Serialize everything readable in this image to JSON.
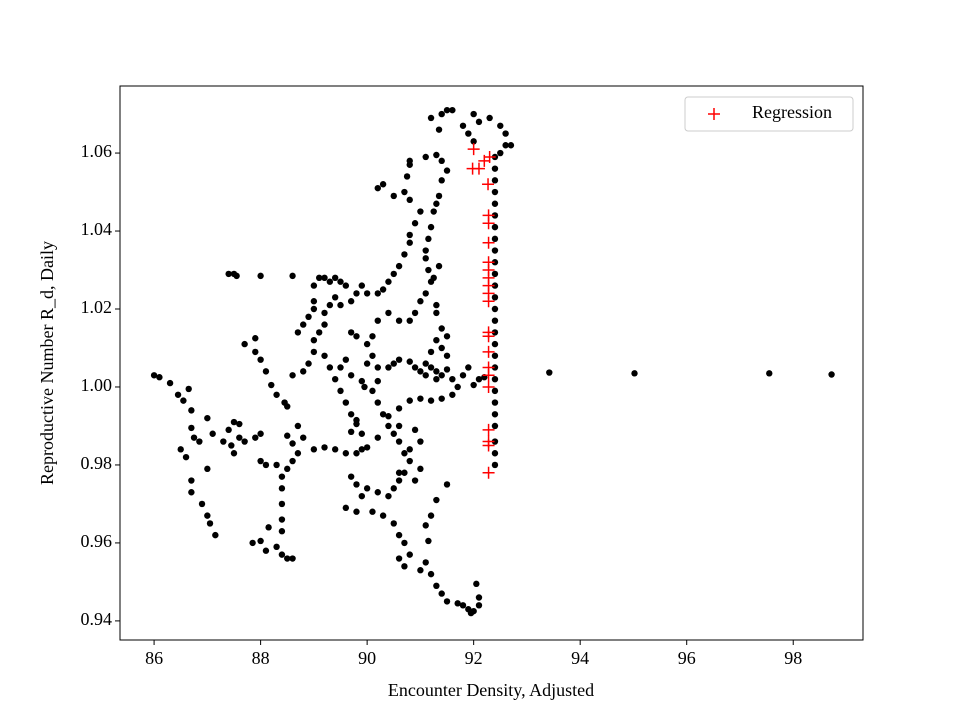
{
  "chart_data": {
    "type": "scatter",
    "xlabel": "Encounter Density, Adjusted",
    "ylabel": "Reproductive Number R_d, Daily",
    "xlim": [
      85.36,
      99.31
    ],
    "ylim": [
      0.9351,
      1.0772
    ],
    "xticks": [
      86,
      88,
      90,
      92,
      94,
      96,
      98
    ],
    "yticks": [
      0.94,
      0.96,
      0.98,
      {
        "value": 1.0,
        "label": "1.00"
      },
      1.02,
      1.04,
      1.06
    ],
    "legend": "upper right",
    "series": [
      {
        "color": "#000000",
        "marker": "circle",
        "x": [
          86.0,
          86.1,
          86.3,
          86.45,
          86.55,
          86.65,
          86.7,
          86.7,
          86.75,
          86.85,
          86.5,
          86.6,
          86.7,
          86.7,
          86.9,
          87.0,
          87.05,
          87.15,
          87.0,
          87.0,
          87.1,
          87.3,
          87.4,
          87.5,
          87.6,
          87.45,
          87.5,
          87.7,
          87.9,
          88.0,
          87.6,
          87.4,
          87.5,
          87.55,
          88.0,
          88.6,
          87.7,
          87.9,
          87.9,
          88.0,
          88.1,
          88.2,
          88.3,
          88.45,
          88.5,
          88.0,
          88.1,
          88.3,
          88.4,
          88.4,
          88.4,
          88.4,
          88.4,
          88.3,
          88.4,
          88.5,
          88.6,
          88.1,
          88.0,
          87.85,
          88.15,
          88.5,
          88.6,
          88.7,
          88.6,
          88.5,
          88.8,
          88.7,
          88.6,
          88.8,
          88.9,
          89.0,
          88.7,
          88.8,
          88.9,
          89.0,
          89.0,
          89.0,
          89.1,
          89.2,
          89.3,
          89.4,
          89.5,
          89.6,
          89.0,
          89.1,
          89.2,
          89.2,
          89.3,
          89.4,
          89.5,
          89.7,
          89.8,
          89.9,
          89.2,
          89.3,
          89.4,
          89.5,
          89.6,
          89.7,
          89.8,
          89.9,
          89.0,
          89.2,
          89.4,
          89.6,
          89.8,
          89.9,
          90.0,
          90.2,
          89.7,
          89.8,
          89.6,
          89.5,
          89.7,
          89.9,
          89.95,
          90.2,
          90.0,
          90.2,
          90.3,
          90.4,
          90.5,
          90.6,
          90.7,
          90.8,
          90.8,
          90.9,
          91.0,
          90.8,
          90.7,
          90.5,
          90.3,
          90.2,
          90.75,
          90.8,
          90.8,
          91.1,
          91.3,
          91.4,
          91.5,
          91.4,
          91.35,
          91.3,
          91.25,
          91.2,
          91.15,
          91.1,
          91.1,
          91.15,
          91.2,
          91.1,
          91.0,
          90.9,
          90.8,
          90.6,
          90.4,
          90.2,
          90.1,
          90.0,
          89.8,
          89.7,
          90.1,
          90.0,
          90.2,
          90.4,
          90.5,
          90.6,
          90.8,
          90.9,
          91.0,
          91.2,
          91.1,
          91.3,
          91.4,
          91.5,
          90.1,
          90.2,
          90.3,
          90.4,
          90.5,
          90.6,
          90.7,
          90.8,
          90.7,
          90.6,
          90.5,
          90.4,
          90.2,
          90.0,
          89.9,
          89.8,
          89.7,
          89.6,
          89.8,
          90.1,
          90.3,
          90.5,
          90.6,
          90.7,
          90.6,
          90.7,
          90.8,
          91.0,
          91.2,
          91.3,
          91.4,
          91.5,
          91.7,
          91.8,
          91.9,
          92.0,
          92.1,
          92.05,
          92.1,
          91.95,
          91.1,
          91.15,
          91.1,
          91.2,
          91.3,
          91.5,
          90.4,
          90.6,
          90.8,
          91.0,
          90.6,
          90.9,
          91.0,
          90.8,
          91.0,
          90.9,
          90.6,
          91.2,
          91.4,
          91.6,
          91.7,
          91.5,
          91.4,
          91.3,
          91.4,
          91.5,
          91.1,
          91.2,
          91.3,
          91.6,
          91.8,
          91.9,
          92.0,
          92.1,
          92.2,
          91.3,
          91.3,
          91.35,
          91.25,
          91.2,
          91.4,
          91.5,
          91.6,
          91.8,
          92.0,
          92.1,
          92.3,
          92.5,
          92.6,
          92.7,
          92.6,
          92.5,
          91.9,
          92.0,
          91.35,
          92.4,
          92.4,
          92.4,
          92.4,
          92.4,
          92.4,
          92.4,
          92.4,
          92.4,
          92.4,
          92.4,
          92.4,
          92.4,
          92.4,
          92.4,
          92.4,
          92.4,
          92.4,
          92.4,
          92.4,
          92.4,
          92.4,
          92.4,
          92.4,
          92.4,
          92.4,
          92.4,
          93.42,
          95.02,
          97.55,
          98.72
        ],
        "values": [
          1.003,
          1.0025,
          1.001,
          0.998,
          0.9965,
          0.9995,
          0.994,
          0.9895,
          0.987,
          0.986,
          0.984,
          0.982,
          0.976,
          0.973,
          0.97,
          0.967,
          0.965,
          0.962,
          0.979,
          0.992,
          0.988,
          0.986,
          0.989,
          0.991,
          0.987,
          0.985,
          0.983,
          0.986,
          0.987,
          0.988,
          0.9905,
          1.029,
          1.029,
          1.0285,
          1.0285,
          1.0285,
          1.011,
          1.0125,
          1.009,
          1.007,
          1.004,
          1.0005,
          0.998,
          0.996,
          0.995,
          0.981,
          0.98,
          0.98,
          0.977,
          0.974,
          0.97,
          0.966,
          0.963,
          0.959,
          0.957,
          0.956,
          0.956,
          0.958,
          0.9605,
          0.96,
          0.964,
          0.9875,
          0.9855,
          0.983,
          0.981,
          0.979,
          0.987,
          0.99,
          1.003,
          1.004,
          1.006,
          1.009,
          1.014,
          1.016,
          1.018,
          1.02,
          1.022,
          1.026,
          1.028,
          1.028,
          1.027,
          1.028,
          1.027,
          1.026,
          1.012,
          1.014,
          1.016,
          1.019,
          1.021,
          1.023,
          1.021,
          1.022,
          1.024,
          1.026,
          1.008,
          1.005,
          1.002,
          0.999,
          0.996,
          0.993,
          0.9905,
          0.988,
          0.984,
          0.9845,
          0.984,
          0.983,
          0.983,
          0.984,
          0.9845,
          0.987,
          0.9885,
          0.9915,
          1.007,
          1.005,
          1.003,
          1.0015,
          1.0,
          1.0015,
          1.024,
          1.024,
          1.025,
          1.027,
          1.029,
          1.031,
          1.034,
          1.037,
          1.039,
          1.042,
          1.045,
          1.048,
          1.05,
          1.049,
          1.052,
          1.051,
          1.054,
          1.057,
          1.058,
          1.059,
          1.0595,
          1.058,
          1.0555,
          1.053,
          1.049,
          1.047,
          1.045,
          1.041,
          1.038,
          1.035,
          1.033,
          1.03,
          1.027,
          1.024,
          1.022,
          1.019,
          1.017,
          1.017,
          1.019,
          1.017,
          1.013,
          1.011,
          1.013,
          1.014,
          1.008,
          1.006,
          1.005,
          1.005,
          1.006,
          1.007,
          1.0065,
          1.005,
          1.004,
          1.005,
          1.003,
          1.002,
          1.003,
          1.0045,
          0.999,
          0.996,
          0.993,
          0.99,
          0.988,
          0.986,
          0.983,
          0.981,
          0.978,
          0.976,
          0.974,
          0.972,
          0.973,
          0.974,
          0.972,
          0.975,
          0.977,
          0.969,
          0.968,
          0.968,
          0.967,
          0.965,
          0.962,
          0.96,
          0.956,
          0.954,
          0.957,
          0.953,
          0.952,
          0.949,
          0.947,
          0.945,
          0.9445,
          0.944,
          0.943,
          0.9425,
          0.946,
          0.9495,
          0.944,
          0.942,
          0.955,
          0.9605,
          0.9645,
          0.967,
          0.971,
          0.975,
          0.9925,
          0.9945,
          0.9965,
          0.997,
          0.978,
          0.976,
          0.979,
          0.984,
          0.986,
          0.989,
          0.99,
          0.9965,
          0.997,
          0.998,
          1.0,
          1.008,
          1.01,
          1.012,
          1.015,
          1.013,
          1.006,
          1.009,
          1.004,
          1.002,
          1.003,
          1.005,
          1.0005,
          1.002,
          1.0025,
          1.021,
          1.019,
          1.031,
          1.028,
          1.069,
          1.07,
          1.071,
          1.071,
          1.067,
          1.07,
          1.068,
          1.069,
          1.067,
          1.065,
          1.062,
          1.062,
          1.06,
          1.065,
          1.063,
          1.066,
          0.98,
          0.983,
          0.986,
          0.99,
          0.993,
          0.996,
          0.999,
          1.002,
          1.005,
          1.008,
          1.011,
          1.014,
          1.017,
          1.02,
          1.023,
          1.026,
          1.029,
          1.032,
          1.035,
          1.038,
          1.041,
          1.044,
          1.047,
          1.05,
          1.053,
          1.056,
          1.059,
          1.0037,
          1.0035,
          1.0035,
          1.0032
        ]
      },
      {
        "name": "Regression",
        "color": "#ff0000",
        "marker": "plus",
        "x": [
          92.0,
          91.98,
          92.1,
          92.2,
          92.3,
          92.27,
          92.28,
          92.28,
          92.28,
          92.28,
          92.28,
          92.28,
          92.28,
          92.28,
          92.28,
          92.28,
          92.28,
          92.28,
          92.28,
          92.28,
          92.28,
          92.28,
          92.28,
          92.28,
          92.28
        ],
        "values": [
          1.061,
          1.056,
          1.056,
          1.058,
          1.059,
          1.052,
          1.044,
          1.042,
          1.037,
          1.032,
          1.03,
          1.028,
          1.026,
          1.024,
          1.022,
          1.014,
          1.013,
          1.009,
          1.005,
          1.003,
          1.0,
          0.989,
          0.986,
          0.985,
          0.978
        ]
      }
    ]
  }
}
